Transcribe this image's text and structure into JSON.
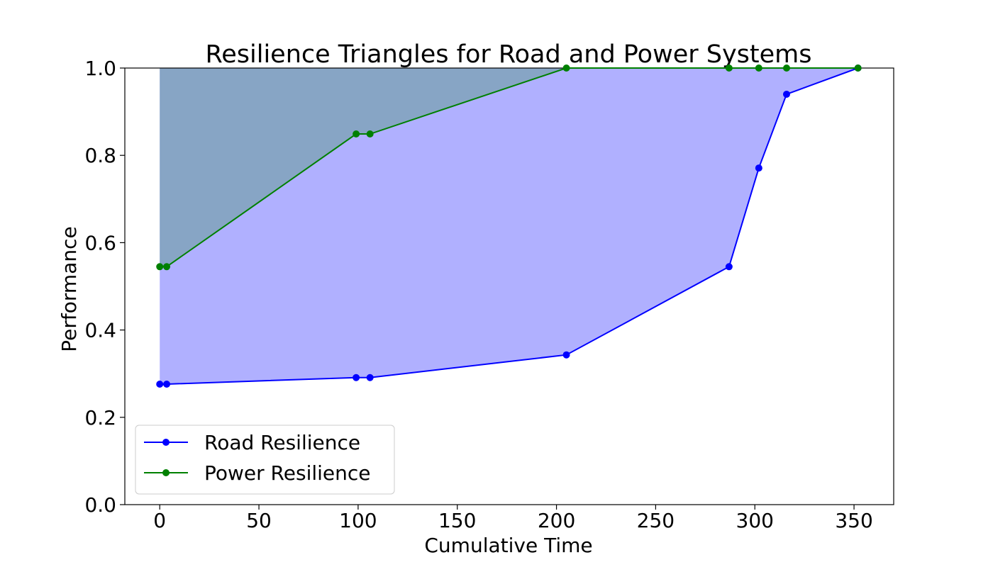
{
  "chart_data": {
    "type": "line",
    "title": "Resilience Triangles for Road and Power Systems",
    "xlabel": "Cumulative Time",
    "ylabel": "Performance",
    "xlim": [
      -17.6,
      370
    ],
    "ylim": [
      0,
      1.0
    ],
    "xticks": [
      0,
      50,
      100,
      150,
      200,
      250,
      300,
      350
    ],
    "yticks": [
      0.0,
      0.2,
      0.4,
      0.6,
      0.8,
      1.0
    ],
    "grid": false,
    "legend_position": "lower-left",
    "series": [
      {
        "name": "Road Resilience",
        "color": "#0000ff",
        "fill_color": "#b0b0ff",
        "x": [
          0,
          3.5,
          99,
          106,
          205,
          287,
          302,
          316,
          352
        ],
        "y": [
          0.276,
          0.276,
          0.291,
          0.291,
          0.343,
          0.545,
          0.771,
          0.94,
          1.0
        ]
      },
      {
        "name": "Power Resilience",
        "color": "#008000",
        "fill_color": "#7aa1b1",
        "x": [
          0,
          3.5,
          99,
          106,
          205,
          287,
          302,
          316,
          352
        ],
        "y": [
          0.545,
          0.545,
          0.849,
          0.849,
          1.0,
          1.0,
          1.0,
          1.0,
          1.0
        ]
      }
    ]
  }
}
